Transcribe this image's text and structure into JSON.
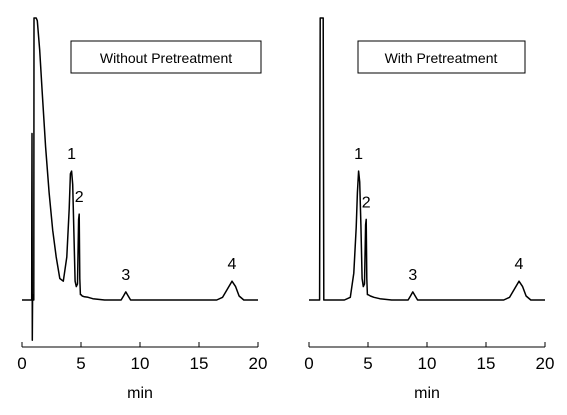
{
  "chart_data": [
    {
      "type": "line",
      "title": "Without Pretreatment",
      "xlabel": "min",
      "ylabel": "",
      "xlim": [
        0,
        20
      ],
      "xticks": [
        0,
        5,
        10,
        15,
        20
      ],
      "grid": false,
      "series": [
        {
          "x": [
            0.0,
            0.5,
            0.82,
            0.83,
            0.85,
            0.87,
            0.9,
            1.0,
            1.02,
            1.05,
            1.1,
            1.15,
            1.2,
            1.3,
            1.5,
            1.7,
            2.0,
            2.3,
            2.6,
            2.9,
            3.2,
            3.5,
            3.8,
            4.0,
            4.1,
            4.2,
            4.3,
            4.4,
            4.5,
            4.6,
            4.7,
            4.8,
            4.85,
            4.9,
            4.95,
            5.0,
            5.1,
            5.3,
            5.6,
            6.0,
            7.0,
            8.0,
            8.4,
            8.6,
            8.8,
            9.0,
            9.2,
            9.5,
            11.0,
            13.0,
            15.0,
            16.5,
            17.0,
            17.4,
            17.8,
            18.1,
            18.4,
            18.8,
            19.2,
            20.0
          ],
          "y": [
            0.0,
            0.0,
            0.0,
            0.35,
            0.62,
            -0.15,
            0.02,
            0.0,
            1.05,
            1.05,
            1.05,
            1.05,
            1.05,
            1.04,
            0.93,
            0.78,
            0.57,
            0.4,
            0.26,
            0.16,
            0.08,
            0.07,
            0.16,
            0.34,
            0.47,
            0.48,
            0.43,
            0.25,
            0.07,
            0.05,
            0.06,
            0.3,
            0.32,
            0.08,
            0.02,
            0.02,
            0.015,
            0.012,
            0.01,
            0.005,
            0.0,
            0.0,
            0.0,
            0.015,
            0.03,
            0.015,
            0.0,
            0.0,
            0.0,
            0.0,
            0.0,
            0.0,
            0.01,
            0.04,
            0.07,
            0.05,
            0.015,
            0.0,
            0.0,
            0.0
          ]
        }
      ],
      "annotations": [
        {
          "label": "1",
          "x": 4.2,
          "y": 0.48
        },
        {
          "label": "2",
          "x": 4.85,
          "y": 0.32
        },
        {
          "label": "3",
          "x": 8.8,
          "y": 0.03
        },
        {
          "label": "4",
          "x": 17.8,
          "y": 0.07
        }
      ]
    },
    {
      "type": "line",
      "title": "With Pretreatment",
      "xlabel": "min",
      "ylabel": "",
      "xlim": [
        0,
        20
      ],
      "xticks": [
        0,
        5,
        10,
        15,
        20
      ],
      "grid": false,
      "series": [
        {
          "x": [
            0.0,
            0.5,
            0.9,
            0.95,
            1.0,
            1.05,
            1.15,
            1.2,
            1.25,
            1.3,
            1.5,
            2.0,
            2.5,
            3.0,
            3.5,
            3.8,
            4.0,
            4.1,
            4.2,
            4.3,
            4.4,
            4.5,
            4.6,
            4.7,
            4.8,
            4.85,
            4.9,
            4.95,
            5.0,
            5.2,
            5.5,
            6.0,
            7.0,
            8.0,
            8.4,
            8.6,
            8.8,
            9.0,
            9.2,
            9.5,
            11.0,
            13.0,
            15.0,
            16.5,
            17.0,
            17.4,
            17.8,
            18.1,
            18.4,
            18.8,
            19.2,
            20.0
          ],
          "y": [
            0.0,
            0.0,
            0.0,
            1.05,
            1.05,
            1.05,
            1.05,
            1.05,
            0.0,
            0.0,
            0.0,
            0.0,
            0.0,
            0.0,
            0.01,
            0.1,
            0.27,
            0.4,
            0.48,
            0.44,
            0.28,
            0.08,
            0.05,
            0.06,
            0.28,
            0.3,
            0.08,
            0.02,
            0.02,
            0.015,
            0.01,
            0.005,
            0.0,
            0.0,
            0.0,
            0.015,
            0.03,
            0.015,
            0.0,
            0.0,
            0.0,
            0.0,
            0.0,
            0.0,
            0.01,
            0.04,
            0.07,
            0.05,
            0.015,
            0.0,
            0.0,
            0.0
          ]
        }
      ],
      "annotations": [
        {
          "label": "1",
          "x": 4.2,
          "y": 0.48
        },
        {
          "label": "2",
          "x": 4.85,
          "y": 0.3
        },
        {
          "label": "3",
          "x": 8.8,
          "y": 0.03
        },
        {
          "label": "4",
          "x": 17.8,
          "y": 0.07
        }
      ]
    }
  ]
}
